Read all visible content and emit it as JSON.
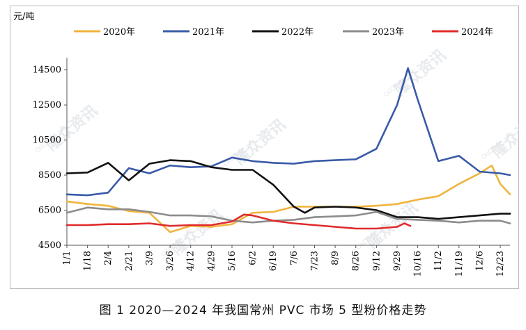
{
  "chart_data": {
    "type": "line",
    "y_unit": "元/吨",
    "ylim": [
      4500,
      15000
    ],
    "y_ticks": [
      4500,
      6500,
      8500,
      10500,
      12500,
      14500
    ],
    "x_ticks": [
      "1/1",
      "1/18",
      "2/4",
      "2/21",
      "3/9",
      "3/26",
      "4/12",
      "4/29",
      "5/16",
      "6/2",
      "6/19",
      "7/6",
      "7/23",
      "8/9",
      "8/26",
      "9/12",
      "9/29",
      "10/16",
      "11/2",
      "11/19",
      "12/6",
      "12/23"
    ],
    "legend_position": "top",
    "grid": false,
    "series": [
      {
        "name": "2020年",
        "color": "#f0b43c",
        "points": [
          [
            "1/1",
            7000
          ],
          [
            "1/18",
            6850
          ],
          [
            "2/4",
            6750
          ],
          [
            "2/21",
            6450
          ],
          [
            "3/9",
            6350
          ],
          [
            "3/26",
            5250
          ],
          [
            "4/12",
            5600
          ],
          [
            "4/29",
            5550
          ],
          [
            "5/16",
            5700
          ],
          [
            "6/2",
            6350
          ],
          [
            "6/19",
            6400
          ],
          [
            "7/6",
            6700
          ],
          [
            "7/23",
            6700
          ],
          [
            "8/9",
            6700
          ],
          [
            "8/26",
            6700
          ],
          [
            "9/12",
            6750
          ],
          [
            "9/29",
            6850
          ],
          [
            "10/16",
            7100
          ],
          [
            "11/2",
            7300
          ],
          [
            "11/19",
            8000
          ],
          [
            "12/6",
            8600
          ],
          [
            "12/16",
            9050
          ],
          [
            "12/23",
            8000
          ],
          [
            "12/31",
            7400
          ]
        ]
      },
      {
        "name": "2021年",
        "color": "#3a5aa8",
        "points": [
          [
            "1/1",
            7400
          ],
          [
            "1/18",
            7350
          ],
          [
            "2/4",
            7500
          ],
          [
            "2/21",
            8900
          ],
          [
            "3/9",
            8600
          ],
          [
            "3/26",
            9050
          ],
          [
            "4/12",
            8950
          ],
          [
            "4/29",
            9000
          ],
          [
            "5/16",
            9500
          ],
          [
            "6/2",
            9300
          ],
          [
            "6/19",
            9200
          ],
          [
            "7/6",
            9150
          ],
          [
            "7/23",
            9300
          ],
          [
            "8/9",
            9350
          ],
          [
            "8/26",
            9400
          ],
          [
            "9/12",
            10000
          ],
          [
            "9/29",
            12500
          ],
          [
            "10/8",
            14600
          ],
          [
            "10/16",
            12800
          ],
          [
            "11/2",
            9300
          ],
          [
            "11/19",
            9600
          ],
          [
            "12/6",
            8700
          ],
          [
            "12/23",
            8600
          ],
          [
            "12/31",
            8500
          ]
        ]
      },
      {
        "name": "2022年",
        "color": "#111111",
        "points": [
          [
            "1/1",
            8600
          ],
          [
            "1/18",
            8650
          ],
          [
            "2/4",
            9200
          ],
          [
            "2/21",
            8200
          ],
          [
            "3/9",
            9150
          ],
          [
            "3/26",
            9350
          ],
          [
            "4/12",
            9300
          ],
          [
            "4/29",
            8950
          ],
          [
            "5/16",
            8800
          ],
          [
            "6/2",
            8800
          ],
          [
            "6/19",
            7950
          ],
          [
            "7/6",
            6700
          ],
          [
            "7/15",
            6350
          ],
          [
            "7/23",
            6650
          ],
          [
            "8/9",
            6700
          ],
          [
            "8/26",
            6650
          ],
          [
            "9/12",
            6500
          ],
          [
            "9/29",
            6100
          ],
          [
            "10/16",
            6100
          ],
          [
            "11/2",
            6000
          ],
          [
            "11/19",
            6100
          ],
          [
            "12/6",
            6200
          ],
          [
            "12/23",
            6300
          ],
          [
            "12/31",
            6300
          ]
        ]
      },
      {
        "name": "2023年",
        "color": "#8c8c8c",
        "points": [
          [
            "1/1",
            6350
          ],
          [
            "1/18",
            6650
          ],
          [
            "2/4",
            6550
          ],
          [
            "2/21",
            6550
          ],
          [
            "3/9",
            6400
          ],
          [
            "3/26",
            6200
          ],
          [
            "4/12",
            6200
          ],
          [
            "4/29",
            6150
          ],
          [
            "5/16",
            5900
          ],
          [
            "6/2",
            5800
          ],
          [
            "6/19",
            5900
          ],
          [
            "7/6",
            5950
          ],
          [
            "7/23",
            6100
          ],
          [
            "8/9",
            6150
          ],
          [
            "8/26",
            6200
          ],
          [
            "9/12",
            6400
          ],
          [
            "9/29",
            6000
          ],
          [
            "10/16",
            5950
          ],
          [
            "11/2",
            5900
          ],
          [
            "11/19",
            5800
          ],
          [
            "12/6",
            5900
          ],
          [
            "12/23",
            5900
          ],
          [
            "12/31",
            5750
          ]
        ]
      },
      {
        "name": "2024年",
        "color": "#e02a2a",
        "points": [
          [
            "1/1",
            5650
          ],
          [
            "1/18",
            5650
          ],
          [
            "2/4",
            5700
          ],
          [
            "2/21",
            5700
          ],
          [
            "3/9",
            5750
          ],
          [
            "3/26",
            5600
          ],
          [
            "4/12",
            5650
          ],
          [
            "4/29",
            5650
          ],
          [
            "5/16",
            5850
          ],
          [
            "5/26",
            6250
          ],
          [
            "6/2",
            6200
          ],
          [
            "6/19",
            5900
          ],
          [
            "7/6",
            5750
          ],
          [
            "7/23",
            5650
          ],
          [
            "8/9",
            5550
          ],
          [
            "8/26",
            5450
          ],
          [
            "9/12",
            5450
          ],
          [
            "9/29",
            5550
          ],
          [
            "10/5",
            5750
          ],
          [
            "10/10",
            5600
          ]
        ]
      }
    ]
  },
  "caption": "图 1  2020—2024 年我国常州 PVC 市场 5 型粉价格走势",
  "watermark": {
    "text_cn": "隆众资讯",
    "text_en": "OilChem.net"
  }
}
